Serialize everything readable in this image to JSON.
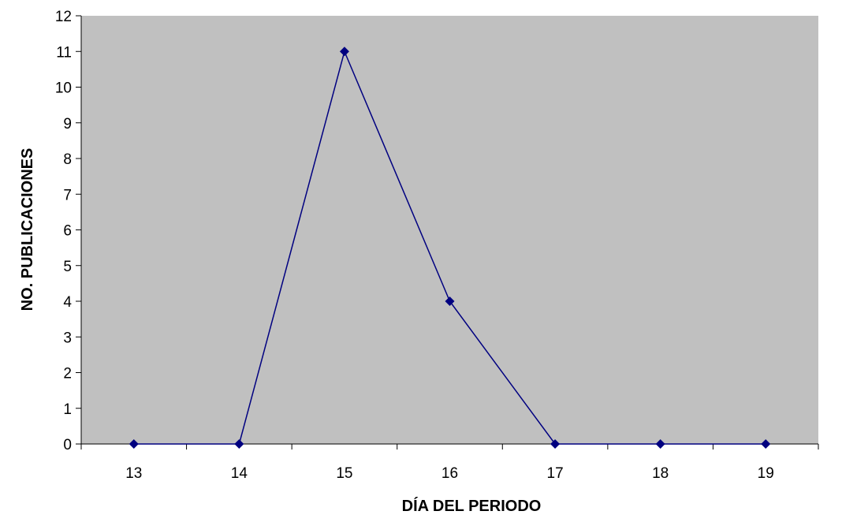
{
  "chart_data": {
    "type": "line",
    "xlabel": "DÍA DEL PERIODO",
    "ylabel": "NO. PUBLICACIONES",
    "categories": [
      "13",
      "14",
      "15",
      "16",
      "17",
      "18",
      "19"
    ],
    "series": [
      {
        "values": [
          0,
          0,
          11,
          4,
          0,
          0,
          0
        ]
      }
    ],
    "ylim": [
      0,
      12
    ],
    "yticks": [
      0,
      1,
      2,
      3,
      4,
      5,
      6,
      7,
      8,
      9,
      10,
      11,
      12
    ],
    "grid": false,
    "legend": "none",
    "colors": {
      "plot_background": "#c0c0c0",
      "series_line": "#000080",
      "marker": "#000080",
      "axis": "#000000"
    },
    "marker": "diamond"
  }
}
